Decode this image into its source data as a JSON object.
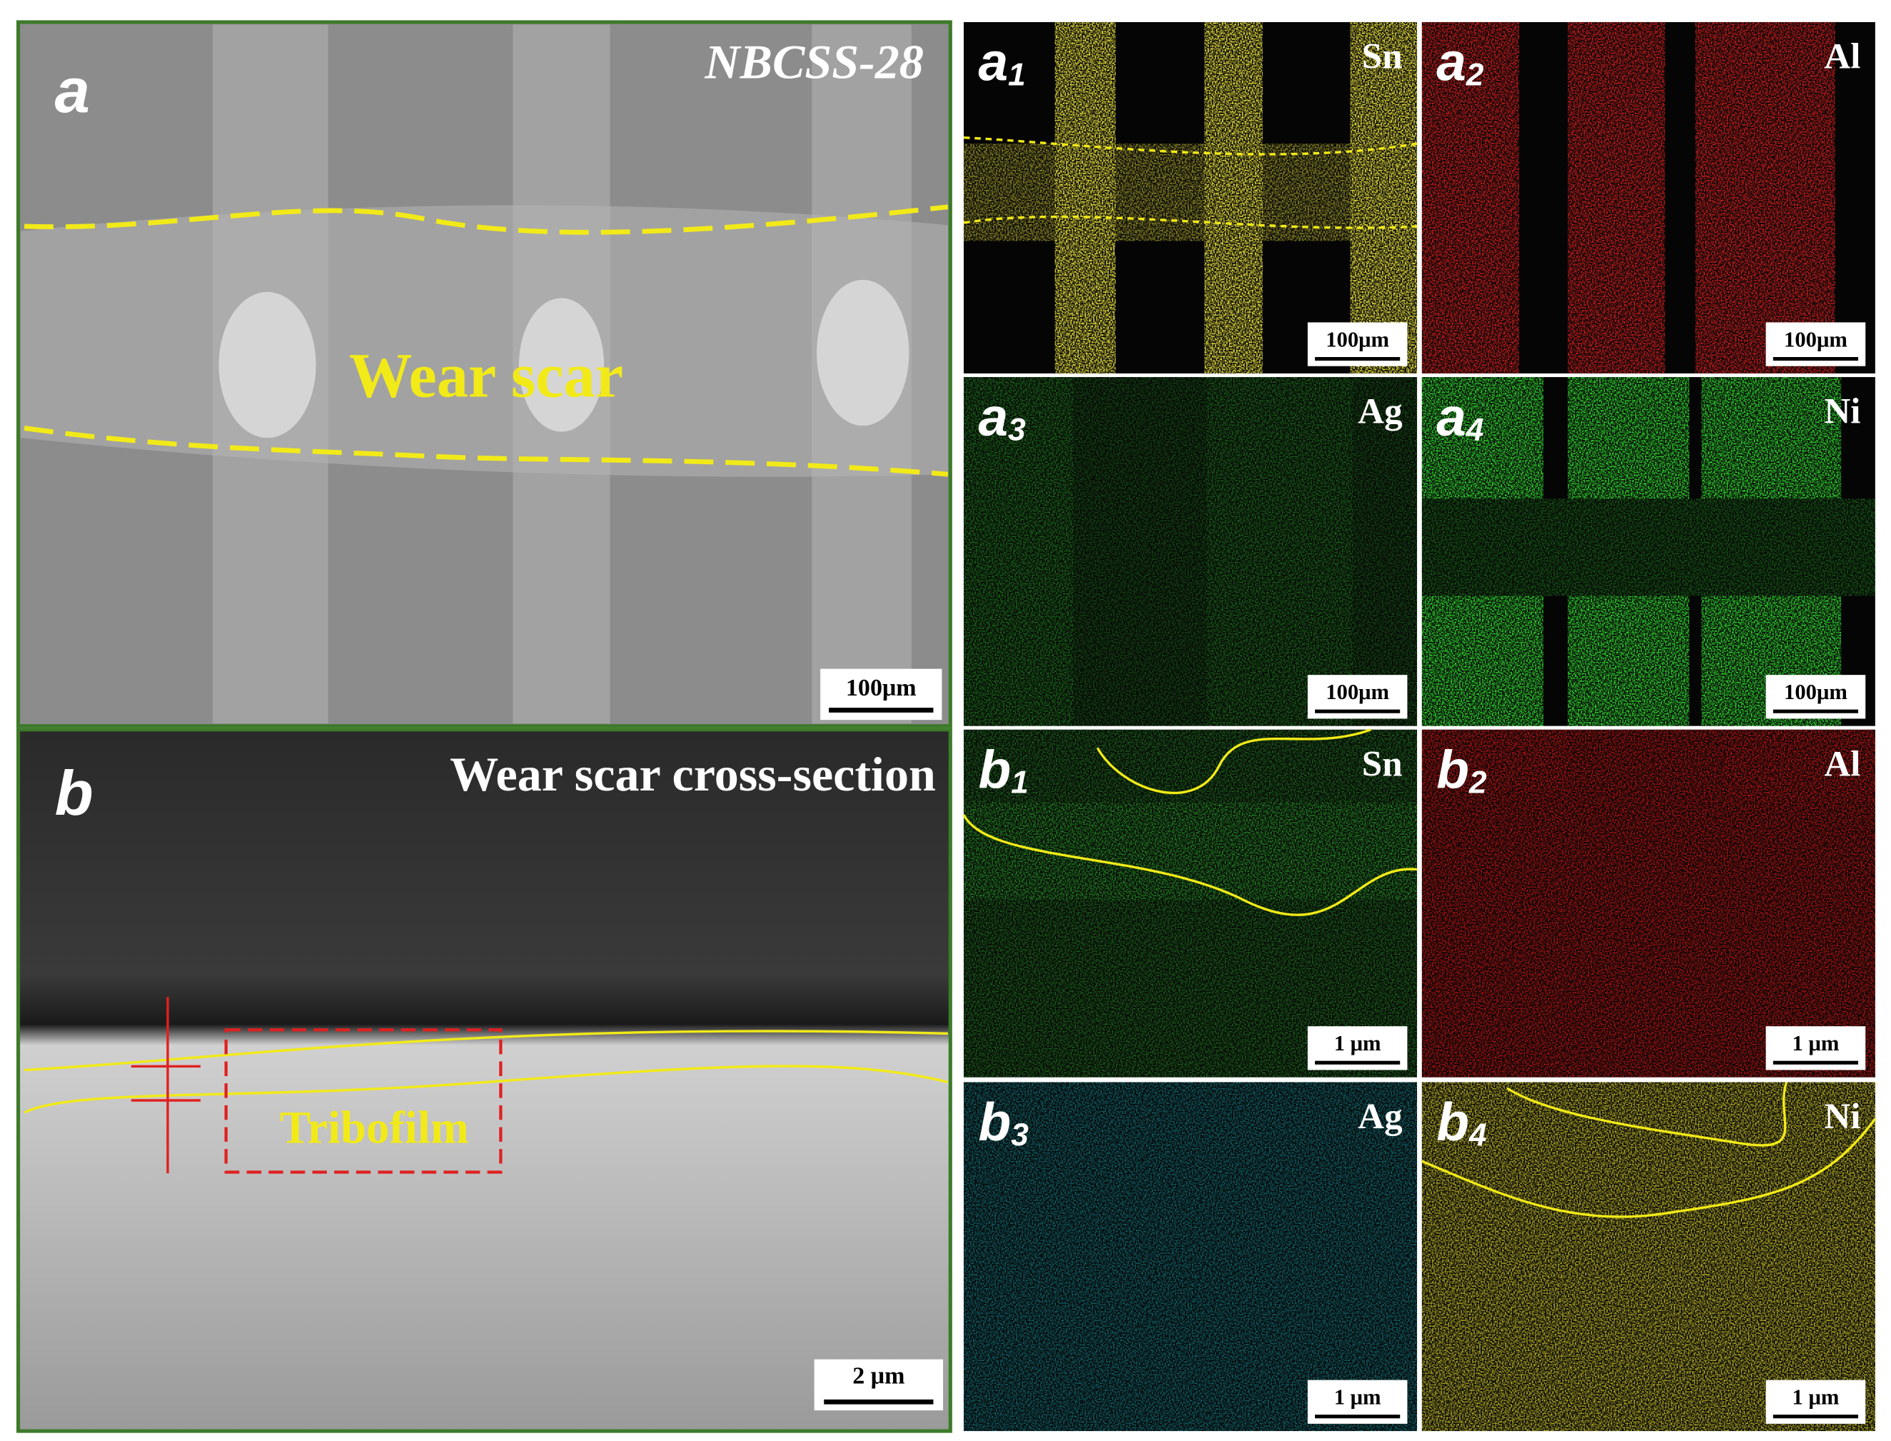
{
  "panel_a": {
    "label": "a",
    "title": "NBCSS-28",
    "annotation": "Wear scar",
    "scale_bar": "100μm"
  },
  "panel_b": {
    "label": "b",
    "title": "Wear scar cross-section",
    "annotation": "Tribofilm",
    "scale_bar": "2 μm"
  },
  "maps": [
    {
      "letter": "a",
      "index": "1",
      "element": "Sn",
      "scale_bar": "100μm",
      "color": "#e8e040"
    },
    {
      "letter": "a",
      "index": "2",
      "element": "Al",
      "scale_bar": "100μm",
      "color": "#d82020"
    },
    {
      "letter": "a",
      "index": "3",
      "element": "Ag",
      "scale_bar": "100μm",
      "color": "#30c030"
    },
    {
      "letter": "a",
      "index": "4",
      "element": "Ni",
      "scale_bar": "100μm",
      "color": "#30d030"
    },
    {
      "letter": "b",
      "index": "1",
      "element": "Sn",
      "scale_bar": "1 μm",
      "color": "#30b030"
    },
    {
      "letter": "b",
      "index": "2",
      "element": "Al",
      "scale_bar": "1 μm",
      "color": "#d01818"
    },
    {
      "letter": "b",
      "index": "3",
      "element": "Ag",
      "scale_bar": "1 μm",
      "color": "#20c8d8"
    },
    {
      "letter": "b",
      "index": "4",
      "element": "Ni",
      "scale_bar": "1 μm",
      "color": "#d8d030"
    }
  ]
}
